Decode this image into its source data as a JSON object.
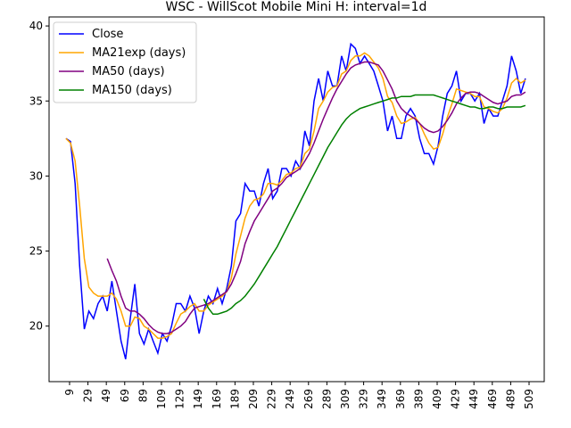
{
  "chart_data": {
    "type": "line",
    "title": "WSC - WillScot Mobile Mini H: interval=1d",
    "x": [
      5,
      10,
      15,
      20,
      25,
      30,
      35,
      40,
      45,
      50,
      55,
      60,
      65,
      70,
      75,
      80,
      85,
      90,
      95,
      100,
      105,
      110,
      115,
      120,
      125,
      130,
      135,
      140,
      145,
      150,
      155,
      160,
      165,
      170,
      175,
      180,
      185,
      190,
      195,
      200,
      205,
      210,
      215,
      220,
      225,
      230,
      235,
      240,
      245,
      250,
      255,
      260,
      265,
      270,
      275,
      280,
      285,
      290,
      295,
      300,
      305,
      310,
      315,
      320,
      325,
      330,
      335,
      340,
      345,
      350,
      355,
      360,
      365,
      370,
      375,
      380,
      385,
      390,
      395,
      400,
      405,
      410,
      415,
      420,
      425,
      430,
      435,
      440,
      445,
      450,
      455,
      460,
      465,
      470,
      475,
      480,
      485,
      490,
      495,
      500,
      505
    ],
    "series": [
      {
        "name": "Close",
        "color": "#0000ff",
        "values": [
          32.5,
          32.3,
          29.5,
          24,
          19.8,
          21,
          20.5,
          21.5,
          22,
          21,
          23,
          21,
          19,
          17.8,
          20.5,
          22.8,
          19.5,
          18.8,
          19.8,
          19,
          18.2,
          19.5,
          19,
          20,
          21.5,
          21.5,
          21,
          22,
          21.2,
          19.5,
          21,
          22,
          21.5,
          22.5,
          21.5,
          22.5,
          24,
          27,
          27.5,
          29.5,
          29,
          29,
          28,
          29.5,
          30.5,
          28.5,
          29,
          30.5,
          30.5,
          30,
          31,
          30.5,
          33,
          32,
          35,
          36.5,
          35,
          37,
          36,
          36,
          38,
          37,
          38.8,
          38.5,
          37.5,
          38,
          37.5,
          37,
          36,
          35,
          33,
          34,
          32.5,
          32.5,
          34,
          34.5,
          34,
          32.5,
          31.5,
          31.5,
          30.8,
          32,
          34,
          35.5,
          36,
          37,
          35,
          35.5,
          35.5,
          35,
          35.5,
          33.5,
          34.5,
          34,
          34,
          35,
          36,
          38,
          37,
          35.5,
          36.5
        ]
      },
      {
        "name": "MA21exp (days)",
        "color": "#ffa500",
        "values": [
          32.5,
          32.2,
          31,
          28,
          24.5,
          22.6,
          22.2,
          22,
          22,
          22,
          22.2,
          21.8,
          21,
          20,
          20,
          20.6,
          20.5,
          20,
          19.8,
          19.5,
          19.2,
          19.2,
          19.3,
          19.5,
          20.2,
          20.8,
          21,
          21.3,
          21.5,
          21,
          21,
          21.4,
          21.6,
          21.8,
          22,
          22.3,
          23.2,
          24.8,
          26,
          27.2,
          28,
          28.4,
          28.5,
          28.8,
          29.5,
          29.5,
          29.4,
          29.7,
          30.1,
          30.2,
          30.5,
          30.6,
          31.5,
          31.8,
          33,
          34.5,
          35,
          35.6,
          35.9,
          36,
          36.8,
          37,
          37.7,
          38,
          38,
          38.2,
          38,
          37.6,
          37.2,
          36.5,
          35.3,
          34.9,
          34,
          33.5,
          33.6,
          33.8,
          33.9,
          33.5,
          32.8,
          32.2,
          31.8,
          31.9,
          32.8,
          33.9,
          34.8,
          35.8,
          35.7,
          35.6,
          35.5,
          35.3,
          35.3,
          34.6,
          34.5,
          34.3,
          34.2,
          34.5,
          35.2,
          36.2,
          36.5,
          36.2,
          36.4
        ]
      },
      {
        "name": "MA50 (days)",
        "color": "#800080",
        "values": [
          null,
          null,
          null,
          null,
          null,
          null,
          null,
          null,
          null,
          24.5,
          23.7,
          23,
          22,
          21.2,
          21,
          21,
          20.8,
          20.5,
          20.1,
          19.8,
          19.6,
          19.5,
          19.5,
          19.6,
          19.8,
          20,
          20.3,
          20.8,
          21.2,
          21.3,
          21.4,
          21.5,
          21.7,
          21.9,
          22.1,
          22.3,
          22.8,
          23.5,
          24.3,
          25.5,
          26.3,
          27,
          27.5,
          28,
          28.5,
          29,
          29.2,
          29.5,
          29.9,
          30.1,
          30.3,
          30.5,
          31,
          31.5,
          32.2,
          33,
          33.8,
          34.5,
          35.2,
          35.8,
          36.3,
          36.8,
          37.2,
          37.4,
          37.5,
          37.6,
          37.6,
          37.5,
          37.4,
          37,
          36.4,
          35.8,
          35,
          34.5,
          34.2,
          34,
          33.8,
          33.5,
          33.2,
          33,
          32.9,
          33,
          33.3,
          33.7,
          34.2,
          34.8,
          35.2,
          35.5,
          35.6,
          35.6,
          35.5,
          35.3,
          35.1,
          34.9,
          34.8,
          34.9,
          35,
          35.3,
          35.4,
          35.4,
          35.6
        ]
      },
      {
        "name": "MA150 (days)",
        "color": "#008000",
        "values": [
          null,
          null,
          null,
          null,
          null,
          null,
          null,
          null,
          null,
          null,
          null,
          null,
          null,
          null,
          null,
          null,
          null,
          null,
          null,
          null,
          null,
          null,
          null,
          null,
          null,
          null,
          null,
          null,
          null,
          null,
          21.8,
          21.2,
          20.8,
          20.8,
          20.9,
          21,
          21.2,
          21.5,
          21.7,
          22,
          22.4,
          22.8,
          23.3,
          23.8,
          24.3,
          24.8,
          25.3,
          25.9,
          26.5,
          27.1,
          27.7,
          28.3,
          28.9,
          29.5,
          30.1,
          30.7,
          31.3,
          31.9,
          32.4,
          32.9,
          33.4,
          33.8,
          34.1,
          34.3,
          34.5,
          34.6,
          34.7,
          34.8,
          34.9,
          35,
          35.1,
          35.2,
          35.2,
          35.3,
          35.3,
          35.3,
          35.4,
          35.4,
          35.4,
          35.4,
          35.4,
          35.3,
          35.2,
          35.1,
          35,
          34.9,
          34.8,
          34.7,
          34.6,
          34.6,
          34.5,
          34.5,
          34.6,
          34.6,
          34.5,
          34.5,
          34.6,
          34.6,
          34.6,
          34.6,
          34.7
        ]
      }
    ],
    "xlim": [
      -13.3,
      525.5
    ],
    "xticks": [
      9,
      29,
      49,
      69,
      89,
      109,
      129,
      149,
      169,
      189,
      209,
      229,
      249,
      269,
      289,
      309,
      329,
      349,
      369,
      389,
      409,
      429,
      449,
      469,
      489,
      509
    ],
    "ylim": [
      16.3,
      40.6
    ],
    "yticks": [
      20,
      25,
      30,
      35,
      40
    ],
    "grid": false,
    "legend": "upper left"
  }
}
